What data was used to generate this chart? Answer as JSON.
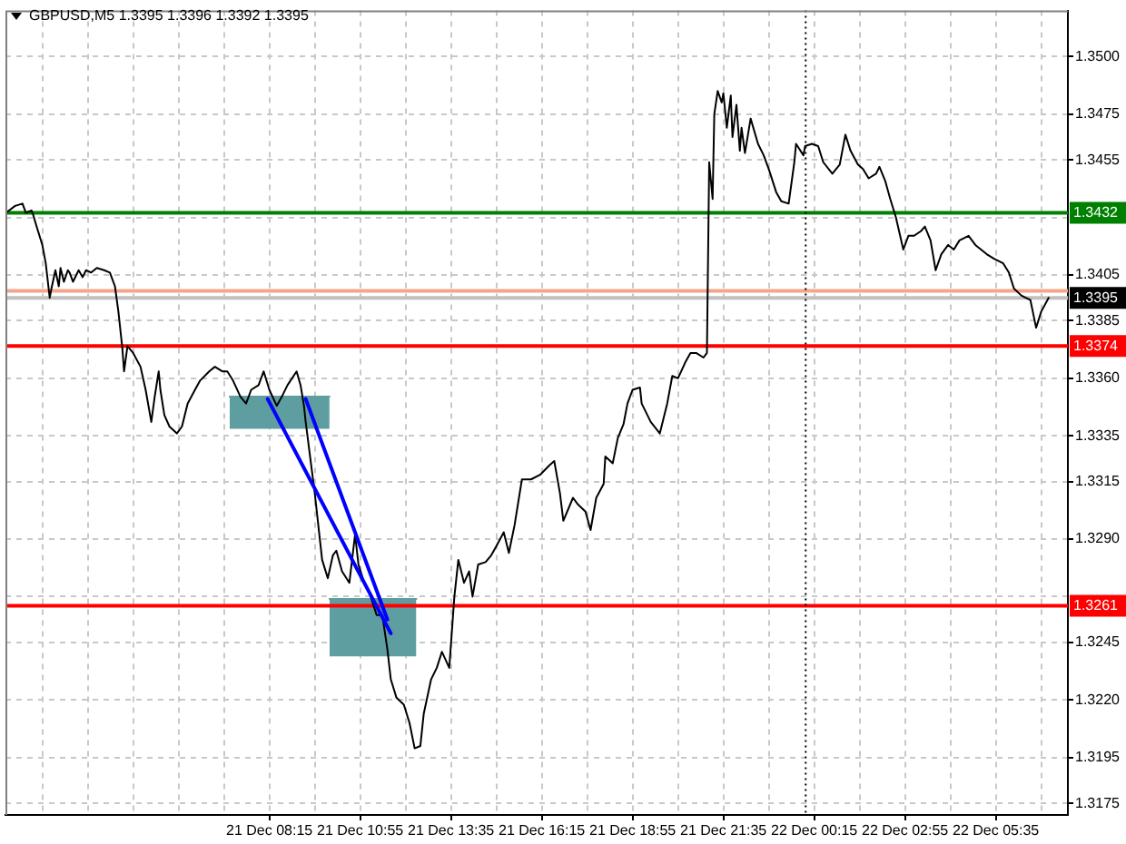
{
  "chart_data": {
    "type": "line",
    "title": "GBPUSD,M5 1.3395 1.3396 1.3392 1.3395",
    "series": [
      {
        "color": "#000000",
        "x": [
          "--12-21T00:31",
          "--12-21T00:47",
          "--12-21T01:00",
          "--12-21T01:06",
          "--12-21T01:16",
          "--12-21T01:19",
          "--12-21T01:25",
          "--12-21T01:35",
          "--12-21T01:41",
          "--12-21T01:48",
          "--12-21T01:51",
          "--12-21T01:58",
          "--12-21T02:04",
          "--12-21T02:07",
          "--12-21T02:13",
          "--12-21T02:20",
          "--12-21T02:23",
          "--12-21T02:29",
          "--12-21T02:39",
          "--12-21T02:46",
          "--12-21T02:52",
          "--12-21T03:01",
          "--12-21T03:11",
          "--12-21T03:24",
          "--12-21T03:34",
          "--12-21T03:43",
          "--12-21T03:49",
          "--12-21T03:56",
          "--12-21T03:59",
          "--12-21T04:05",
          "--12-21T04:15",
          "--12-21T04:28",
          "--12-21T04:37",
          "--12-21T04:47",
          "--12-21T04:53",
          "--12-21T05:00",
          "--12-21T05:03",
          "--12-21T05:10",
          "--12-21T05:19",
          "--12-21T05:32",
          "--12-21T05:41",
          "--12-21T05:51",
          "--12-21T06:04",
          "--12-21T06:13",
          "--12-21T06:29",
          "--12-21T06:39",
          "--12-21T06:52",
          "--12-21T07:01",
          "--12-21T07:11",
          "--12-21T07:24",
          "--12-21T07:34",
          "--12-21T07:43",
          "--12-21T07:56",
          "--12-21T08:05",
          "--12-21T08:15",
          "--12-21T08:28",
          "--12-21T08:37",
          "--12-21T08:47",
          "--12-21T09:03",
          "--12-21T09:10",
          "--12-21T09:16",
          "--12-21T09:19",
          "--12-21T09:35",
          "--12-21T09:48",
          "--12-21T09:58",
          "--12-21T10:07",
          "--12-21T10:13",
          "--12-21T10:23",
          "--12-21T10:36",
          "--12-21T10:46",
          "--12-21T10:52",
          "--12-21T11:01",
          "--12-21T11:11",
          "--12-21T11:24",
          "--12-21T11:34",
          "--12-21T11:43",
          "--12-21T11:49",
          "--12-21T11:59",
          "--12-21T12:12",
          "--12-21T12:22",
          "--12-21T12:31",
          "--12-21T12:41",
          "--12-21T12:47",
          "--12-21T13:00",
          "--12-21T13:10",
          "--12-21T13:19",
          "--12-21T13:32",
          "--12-21T13:41",
          "--12-21T13:48",
          "--12-21T13:58",
          "--12-21T14:07",
          "--12-21T14:13",
          "--12-21T14:23",
          "--12-21T14:36",
          "--12-21T14:46",
          "--12-21T14:55",
          "--12-21T15:08",
          "--12-21T15:17",
          "--12-21T15:27",
          "--12-21T15:40",
          "--12-21T15:56",
          "--12-21T16:12",
          "--12-21T16:28",
          "--12-21T16:37",
          "--12-21T16:47",
          "--12-21T16:53",
          "--12-21T17:10",
          "--12-21T17:19",
          "--12-21T17:32",
          "--12-21T17:41",
          "--12-21T17:51",
          "--12-21T18:04",
          "--12-21T18:07",
          "--12-21T18:20",
          "--12-21T18:29",
          "--12-21T18:39",
          "--12-21T18:46",
          "--12-21T18:55",
          "--12-21T19:08",
          "--12-21T19:11",
          "--12-21T19:27",
          "--12-21T19:43",
          "--12-21T19:56",
          "--12-21T20:05",
          "--12-21T20:15",
          "--12-21T20:28",
          "--12-21T20:37",
          "--12-21T20:47",
          "--12-21T21:00",
          "--12-21T21:06",
          "--12-21T21:10",
          "--12-21T21:16",
          "--12-21T21:19",
          "--12-21T21:25",
          "--12-21T21:32",
          "--12-21T21:35",
          "--12-21T21:41",
          "--12-21T21:48",
          "--12-21T21:51",
          "--12-21T21:58",
          "--12-21T22:04",
          "--12-21T22:07",
          "--12-21T22:13",
          "--12-21T22:23",
          "--12-21T22:36",
          "--12-21T22:46",
          "--12-21T22:55",
          "--12-21T23:08",
          "--12-21T23:17",
          "--12-21T23:30",
          "--12-21T23:40",
          "--12-21T23:43",
          "--12-21T23:56",
          "--12-21T23:59",
          "--12-22T00:11",
          "--12-22T00:22",
          "--12-22T00:31",
          "--12-22T00:47",
          "--12-22T01:00",
          "--12-22T01:10",
          "--12-22T01:19",
          "--12-22T01:32",
          "--12-22T01:41",
          "--12-22T01:51",
          "--12-22T02:04",
          "--12-22T02:10",
          "--12-22T02:20",
          "--12-22T02:29",
          "--12-22T02:39",
          "--12-22T02:52",
          "--12-22T03:01",
          "--12-22T03:11",
          "--12-22T03:23",
          "--12-22T03:30",
          "--12-22T03:40",
          "--12-22T03:49",
          "--12-22T03:59",
          "--12-22T04:11",
          "--12-22T04:21",
          "--12-22T04:31",
          "--12-22T04:47",
          "--12-22T04:59",
          "--12-22T05:09",
          "--12-22T05:19",
          "--12-22T05:32",
          "--12-22T05:48",
          "--12-22T05:58",
          "--12-22T06:07",
          "--12-22T06:20",
          "--12-22T06:36",
          "--12-22T06:46",
          "--12-22T06:55",
          "--12-22T07:08"
        ],
        "values": [
          1.3432,
          1.3435,
          1.3436,
          1.3432,
          1.3433,
          1.3431,
          1.3426,
          1.3418,
          1.341,
          1.3395,
          1.3399,
          1.3407,
          1.34,
          1.3408,
          1.3402,
          1.3407,
          1.3406,
          1.3402,
          1.3407,
          1.3404,
          1.3407,
          1.3406,
          1.3408,
          1.3407,
          1.3406,
          1.34,
          1.3389,
          1.3373,
          1.3363,
          1.3374,
          1.3371,
          1.3365,
          1.3355,
          1.3341,
          1.3352,
          1.3363,
          1.3355,
          1.3344,
          1.3339,
          1.3336,
          1.3339,
          1.3349,
          1.3355,
          1.3359,
          1.3363,
          1.3365,
          1.3363,
          1.3363,
          1.3359,
          1.3352,
          1.3349,
          1.3355,
          1.3357,
          1.3363,
          1.3355,
          1.3348,
          1.3352,
          1.3357,
          1.3363,
          1.3357,
          1.3348,
          1.3341,
          1.331,
          1.3281,
          1.3273,
          1.3283,
          1.3285,
          1.3276,
          1.3271,
          1.3292,
          1.3279,
          1.3272,
          1.3267,
          1.3257,
          1.3257,
          1.3242,
          1.3229,
          1.3221,
          1.3218,
          1.321,
          1.3199,
          1.32,
          1.3214,
          1.3229,
          1.3234,
          1.3241,
          1.3234,
          1.3265,
          1.3281,
          1.3271,
          1.3276,
          1.3265,
          1.3279,
          1.328,
          1.3283,
          1.3287,
          1.3293,
          1.3284,
          1.3296,
          1.3316,
          1.3316,
          1.3318,
          1.3322,
          1.3324,
          1.331,
          1.3298,
          1.3308,
          1.3305,
          1.3302,
          1.3294,
          1.3308,
          1.3314,
          1.3326,
          1.3323,
          1.3334,
          1.334,
          1.3349,
          1.3355,
          1.3356,
          1.3349,
          1.3341,
          1.3336,
          1.3349,
          1.3361,
          1.336,
          1.3367,
          1.3371,
          1.3371,
          1.3369,
          1.3371,
          1.3454,
          1.3438,
          1.3475,
          1.3485,
          1.348,
          1.3484,
          1.3469,
          1.3483,
          1.3465,
          1.3479,
          1.3459,
          1.3469,
          1.3458,
          1.3473,
          1.3462,
          1.3457,
          1.3451,
          1.3441,
          1.3437,
          1.3436,
          1.3454,
          1.3462,
          1.3457,
          1.3461,
          1.3462,
          1.3461,
          1.3454,
          1.3449,
          1.3453,
          1.3466,
          1.3459,
          1.3453,
          1.3451,
          1.3447,
          1.3449,
          1.3452,
          1.3446,
          1.3438,
          1.343,
          1.3416,
          1.3422,
          1.3422,
          1.3424,
          1.3426,
          1.342,
          1.3407,
          1.3414,
          1.3418,
          1.3416,
          1.342,
          1.3422,
          1.3418,
          1.3416,
          1.3414,
          1.3412,
          1.341,
          1.3406,
          1.3399,
          1.3396,
          1.3394,
          1.3382,
          1.3389,
          1.3395
        ]
      },
      {
        "type": "line",
        "color": "#0000ff",
        "x": [
          "--12-21T08:12",
          "--12-21T11:49"
        ],
        "values": [
          1.3351,
          1.3249
        ]
      },
      {
        "type": "line",
        "color": "#0000ff",
        "x": [
          "--12-21T09:19",
          "--12-21T11:43"
        ],
        "values": [
          1.3351,
          1.3255
        ]
      },
      {
        "type": "line",
        "color": "#5f9ea0",
        "x": [
          "--12-21T07:05",
          "--12-21T10:01"
        ],
        "values": [
          1.3352,
          1.3352
        ],
        "lower": [
          1.3338,
          1.3338
        ],
        "upper": [
          1.3352,
          1.3352
        ]
      },
      {
        "type": "line",
        "color": "#5f9ea0",
        "x": [
          "--12-21T10:01",
          "--12-21T12:34"
        ],
        "values": [
          1.3264,
          1.3264
        ],
        "lower": [
          1.3239,
          1.3239
        ],
        "upper": [
          1.3264,
          1.3264
        ]
      }
    ],
    "xlim": [
      "--12-21T00:30",
      "--12-22T07:42"
    ],
    "xticks": [
      {
        "value": "--12-21T01:35",
        "label": null
      },
      {
        "value": "--12-21T02:55",
        "label": null
      },
      {
        "value": "--12-21T04:15",
        "label": null
      },
      {
        "value": "--12-21T05:35",
        "label": null
      },
      {
        "value": "--12-21T06:55",
        "label": null
      },
      {
        "value": "--12-21T08:15",
        "label": "21 Dec 08:15"
      },
      {
        "value": "--12-21T09:35",
        "label": null
      },
      {
        "value": "--12-21T10:55",
        "label": "21 Dec 10:55"
      },
      {
        "value": "--12-21T12:15",
        "label": null
      },
      {
        "value": "--12-21T13:35",
        "label": "21 Dec 13:35"
      },
      {
        "value": "--12-21T14:55",
        "label": null
      },
      {
        "value": "--12-21T16:15",
        "label": "21 Dec 16:15"
      },
      {
        "value": "--12-21T17:35",
        "label": null
      },
      {
        "value": "--12-21T18:55",
        "label": "21 Dec 18:55"
      },
      {
        "value": "--12-21T20:15",
        "label": null
      },
      {
        "value": "--12-21T21:35",
        "label": "21 Dec 21:35"
      },
      {
        "value": "--12-21T22:55",
        "label": null
      },
      {
        "value": "--12-22T00:15",
        "label": "22 Dec 00:15"
      },
      {
        "value": "--12-22T01:35",
        "label": null
      },
      {
        "value": "--12-22T02:55",
        "label": "22 Dec 02:55"
      },
      {
        "value": "--12-22T04:15",
        "label": null
      },
      {
        "value": "--12-22T05:35",
        "label": "22 Dec 05:35"
      },
      {
        "value": "--12-22T06:55",
        "label": null
      }
    ],
    "ylim": [
      1.317,
      1.352
    ],
    "yticks": [
      1.3175,
      1.3195,
      {
        "value": 1.322,
        "label": "1.3220"
      },
      1.3245,
      {
        "value": 1.3265,
        "label": null
      },
      {
        "value": 1.329,
        "label": "1.3290"
      },
      1.3315,
      1.3335,
      {
        "value": 1.336,
        "label": "1.3360"
      },
      1.3385,
      1.3405,
      {
        "value": 1.343,
        "label": null
      },
      1.3455,
      1.3475,
      {
        "value": 1.35,
        "label": "1.3500"
      }
    ],
    "ref_lines": [
      {
        "axis": "y",
        "value": 1.3432,
        "label": "1.3432",
        "color": "#008000"
      },
      {
        "axis": "y",
        "value": 1.3398,
        "color": "#f4a58a"
      },
      {
        "axis": "y",
        "value": 1.3395,
        "color": "#c0c0c0"
      },
      {
        "axis": "y",
        "value": 1.3374,
        "label": "1.3374",
        "color": "#ff0000"
      },
      {
        "axis": "y",
        "value": 1.3261,
        "label": "1.3261",
        "color": "#ff0000"
      },
      {
        "axis": "x",
        "value": "--12-22T00:00",
        "color": "#000000",
        "line_style": "dotted"
      }
    ],
    "annotations": [
      {
        "text": "1.3395",
        "y": 1.3395
      }
    ],
    "grid": true
  }
}
